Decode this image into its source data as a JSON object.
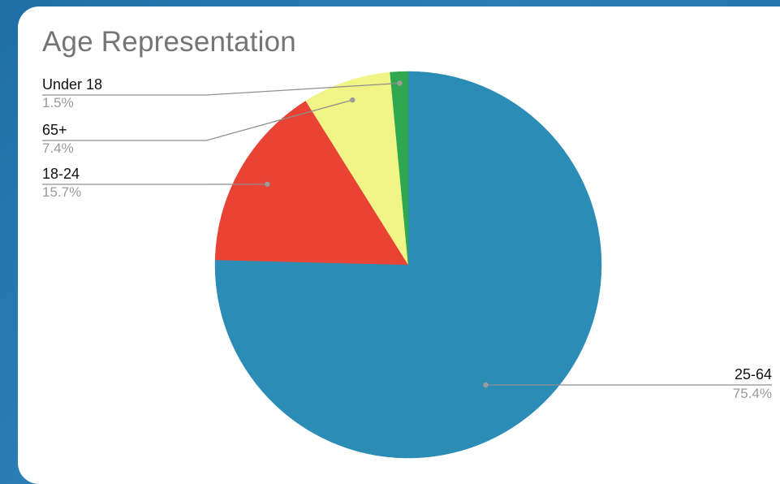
{
  "chart_data": {
    "type": "pie",
    "title": "Age Representation",
    "start_angle_deg": 0,
    "direction": "clockwise",
    "slices": [
      {
        "label": "25-64",
        "value": 75.4,
        "value_label": "75.4%",
        "color": "#2b8cb5",
        "label_side": "right"
      },
      {
        "label": "18-24",
        "value": 15.7,
        "value_label": "15.7%",
        "color": "#e94335",
        "label_side": "left"
      },
      {
        "label": "65+",
        "value": 7.4,
        "value_label": "7.4%",
        "color": "#f1f587",
        "label_side": "left"
      },
      {
        "label": "Under 18",
        "value": 1.5,
        "value_label": "1.5%",
        "color": "#2fa84f",
        "label_side": "left"
      }
    ],
    "legend": "none",
    "label_style": "callout lines with label and percentage"
  }
}
